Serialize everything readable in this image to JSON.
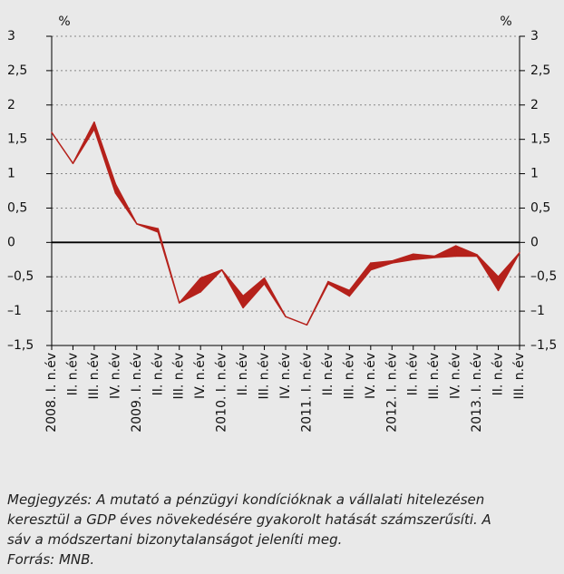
{
  "chart_data": {
    "type": "band",
    "y_unit": "%",
    "y2_unit": "%",
    "categories": [
      "2008. I. n.év",
      "II. n.év",
      "III. n.év",
      "IV. n.év",
      "2009. I. n.év",
      "II. n.év",
      "III. n.év",
      "IV. n.év",
      "2010. I. n.év",
      "II. n.év",
      "III. n.év",
      "IV. n.év",
      "2011. I. n.év",
      "II. n.év",
      "III. n.év",
      "IV. n.év",
      "2012. I. n.év",
      "II. n.év",
      "III. n.év",
      "IV. n.év",
      "2013. I. n.év",
      "II. n.év",
      "III. n.év"
    ],
    "band": {
      "color": "#b5211b",
      "upper": [
        1.6,
        1.15,
        1.75,
        0.85,
        0.27,
        0.2,
        -0.88,
        -0.52,
        -0.4,
        -0.78,
        -0.52,
        -1.08,
        -1.2,
        -0.57,
        -0.7,
        -0.3,
        -0.27,
        -0.17,
        -0.2,
        -0.05,
        -0.18,
        -0.5,
        -0.15
      ],
      "lower": [
        1.6,
        1.15,
        1.65,
        0.72,
        0.27,
        0.15,
        -0.88,
        -0.72,
        -0.4,
        -0.95,
        -0.6,
        -1.08,
        -1.2,
        -0.6,
        -0.78,
        -0.4,
        -0.3,
        -0.25,
        -0.22,
        -0.2,
        -0.2,
        -0.7,
        -0.15
      ]
    },
    "ylim": [
      -1.5,
      3
    ],
    "yticks": [
      {
        "value": -1.5,
        "label": "–1,5"
      },
      {
        "value": -1,
        "label": "–1"
      },
      {
        "value": -0.5,
        "label": "–0,5"
      },
      0,
      {
        "value": 0.5,
        "label": "0,5"
      },
      1,
      {
        "value": 1.5,
        "label": "1,5"
      },
      2,
      {
        "value": 2.5,
        "label": "2,5"
      },
      3
    ],
    "y2lim": [
      -1.5,
      3
    ],
    "y2ticks": [
      {
        "value": -1.5,
        "label": "–1,5"
      },
      {
        "value": -1,
        "label": "–1"
      },
      {
        "value": -0.5,
        "label": "–0,5"
      },
      0,
      {
        "value": 0.5,
        "label": "0,5"
      },
      1,
      {
        "value": 1.5,
        "label": "1,5"
      },
      2,
      {
        "value": 2.5,
        "label": "2,5"
      },
      3
    ],
    "grid": true,
    "notes": [
      "Megjegyzés: A mutató a pénzügyi kondícióknak a vállalati hitelezésen",
      "keresztül a GDP éves növekedésére gyakorolt hatását számszerűsíti. A",
      "sáv a módszertani bizonytalanságot jeleníti meg."
    ],
    "source": "Forrás: MNB."
  }
}
